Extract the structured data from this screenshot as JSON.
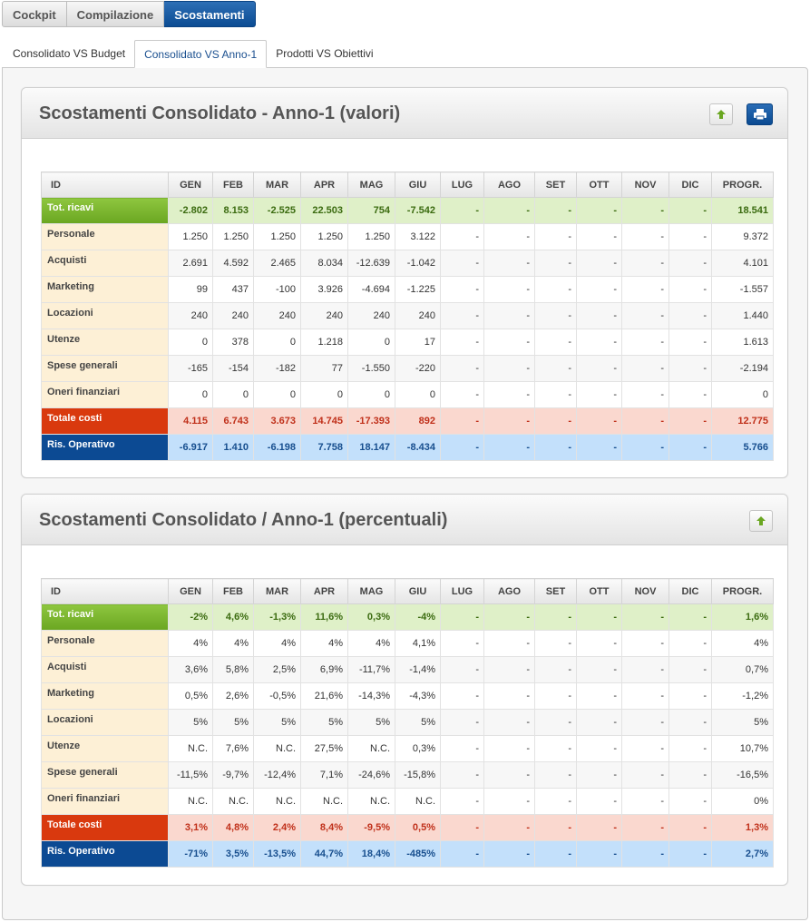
{
  "top_nav": [
    "Cockpit",
    "Compilazione",
    "Scostamenti"
  ],
  "sub_tabs": [
    "Consolidato VS Budget",
    "Consolidato VS Anno-1",
    "Prodotti VS Obiettivi"
  ],
  "columns": [
    "ID",
    "GEN",
    "FEB",
    "MAR",
    "APR",
    "MAG",
    "GIU",
    "LUG",
    "AGO",
    "SET",
    "OTT",
    "NOV",
    "DIC",
    "PROGR."
  ],
  "panel_values": {
    "title": "Scostamenti Consolidato - Anno-1 (valori)",
    "rows": [
      {
        "label": "Tot. ricavi",
        "cells": [
          "-2.802",
          "8.153",
          "-2.525",
          "22.503",
          "754",
          "-7.542",
          "-",
          "-",
          "-",
          "-",
          "-",
          "-",
          "18.541"
        ]
      },
      {
        "label": "Personale",
        "cells": [
          "1.250",
          "1.250",
          "1.250",
          "1.250",
          "1.250",
          "3.122",
          "-",
          "-",
          "-",
          "-",
          "-",
          "-",
          "9.372"
        ]
      },
      {
        "label": "Acquisti",
        "cells": [
          "2.691",
          "4.592",
          "2.465",
          "8.034",
          "-12.639",
          "-1.042",
          "-",
          "-",
          "-",
          "-",
          "-",
          "-",
          "4.101"
        ]
      },
      {
        "label": "Marketing",
        "cells": [
          "99",
          "437",
          "-100",
          "3.926",
          "-4.694",
          "-1.225",
          "-",
          "-",
          "-",
          "-",
          "-",
          "-",
          "-1.557"
        ]
      },
      {
        "label": "Locazioni",
        "cells": [
          "240",
          "240",
          "240",
          "240",
          "240",
          "240",
          "-",
          "-",
          "-",
          "-",
          "-",
          "-",
          "1.440"
        ]
      },
      {
        "label": "Utenze",
        "cells": [
          "0",
          "378",
          "0",
          "1.218",
          "0",
          "17",
          "-",
          "-",
          "-",
          "-",
          "-",
          "-",
          "1.613"
        ]
      },
      {
        "label": "Spese generali",
        "cells": [
          "-165",
          "-154",
          "-182",
          "77",
          "-1.550",
          "-220",
          "-",
          "-",
          "-",
          "-",
          "-",
          "-",
          "-2.194"
        ]
      },
      {
        "label": "Oneri finanziari",
        "cells": [
          "0",
          "0",
          "0",
          "0",
          "0",
          "0",
          "-",
          "-",
          "-",
          "-",
          "-",
          "-",
          "0"
        ]
      },
      {
        "label": "Totale costi",
        "cells": [
          "4.115",
          "6.743",
          "3.673",
          "14.745",
          "-17.393",
          "892",
          "-",
          "-",
          "-",
          "-",
          "-",
          "-",
          "12.775"
        ]
      },
      {
        "label": "Ris. Operativo",
        "cells": [
          "-6.917",
          "1.410",
          "-6.198",
          "7.758",
          "18.147",
          "-8.434",
          "-",
          "-",
          "-",
          "-",
          "-",
          "-",
          "5.766"
        ]
      }
    ]
  },
  "panel_percent": {
    "title": "Scostamenti Consolidato / Anno-1 (percentuali)",
    "rows": [
      {
        "label": "Tot. ricavi",
        "cells": [
          "-2%",
          "4,6%",
          "-1,3%",
          "11,6%",
          "0,3%",
          "-4%",
          "-",
          "-",
          "-",
          "-",
          "-",
          "-",
          "1,6%"
        ]
      },
      {
        "label": "Personale",
        "cells": [
          "4%",
          "4%",
          "4%",
          "4%",
          "4%",
          "4,1%",
          "-",
          "-",
          "-",
          "-",
          "-",
          "-",
          "4%"
        ]
      },
      {
        "label": "Acquisti",
        "cells": [
          "3,6%",
          "5,8%",
          "2,5%",
          "6,9%",
          "-11,7%",
          "-1,4%",
          "-",
          "-",
          "-",
          "-",
          "-",
          "-",
          "0,7%"
        ]
      },
      {
        "label": "Marketing",
        "cells": [
          "0,5%",
          "2,6%",
          "-0,5%",
          "21,6%",
          "-14,3%",
          "-4,3%",
          "-",
          "-",
          "-",
          "-",
          "-",
          "-",
          "-1,2%"
        ]
      },
      {
        "label": "Locazioni",
        "cells": [
          "5%",
          "5%",
          "5%",
          "5%",
          "5%",
          "5%",
          "-",
          "-",
          "-",
          "-",
          "-",
          "-",
          "5%"
        ]
      },
      {
        "label": "Utenze",
        "cells": [
          "N.C.",
          "7,6%",
          "N.C.",
          "27,5%",
          "N.C.",
          "0,3%",
          "-",
          "-",
          "-",
          "-",
          "-",
          "-",
          "10,7%"
        ]
      },
      {
        "label": "Spese generali",
        "cells": [
          "-11,5%",
          "-9,7%",
          "-12,4%",
          "7,1%",
          "-24,6%",
          "-15,8%",
          "-",
          "-",
          "-",
          "-",
          "-",
          "-",
          "-16,5%"
        ]
      },
      {
        "label": "Oneri finanziari",
        "cells": [
          "N.C.",
          "N.C.",
          "N.C.",
          "N.C.",
          "N.C.",
          "N.C.",
          "-",
          "-",
          "-",
          "-",
          "-",
          "-",
          "0%"
        ]
      },
      {
        "label": "Totale costi",
        "cells": [
          "3,1%",
          "4,8%",
          "2,4%",
          "8,4%",
          "-9,5%",
          "0,5%",
          "-",
          "-",
          "-",
          "-",
          "-",
          "-",
          "1,3%"
        ]
      },
      {
        "label": "Ris. Operativo",
        "cells": [
          "-71%",
          "3,5%",
          "-13,5%",
          "44,7%",
          "18,4%",
          "-485%",
          "-",
          "-",
          "-",
          "-",
          "-",
          "-",
          "2,7%"
        ]
      }
    ]
  },
  "icons": {
    "up": "arrow-up-icon",
    "print": "print-icon"
  },
  "colors": {
    "accent": "#0b4c93",
    "ricavi": "#7ab52f",
    "costi": "#d9390e",
    "ris": "#0c4a93"
  }
}
